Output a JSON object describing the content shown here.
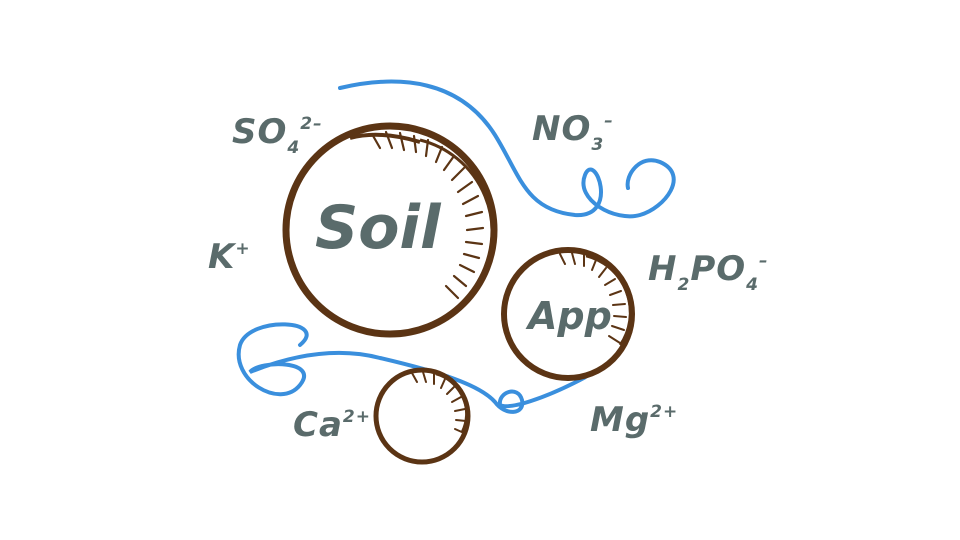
{
  "colors": {
    "ink": "#5a6b6b",
    "soil_brown": "#5b3414",
    "root_blue": "#3a8fdd",
    "background": "#ffffff"
  },
  "spheres": {
    "soil": {
      "label": "Soil"
    },
    "app": {
      "label": "App"
    },
    "small": {
      "label": ""
    }
  },
  "ions": {
    "sulfate": {
      "base": "SO",
      "sub": "4",
      "sup": "2–"
    },
    "nitrate": {
      "base": "NO",
      "sub": "3",
      "sup": "–"
    },
    "potassium": {
      "base": "K",
      "sup": "+"
    },
    "phosphate": {
      "base_h": "H",
      "sub_h": "2",
      "base": "PO",
      "sub": "4",
      "sup": "–"
    },
    "calcium": {
      "base": "Ca",
      "sup": "2+"
    },
    "magnesium": {
      "base": "Mg",
      "sup": "2+"
    }
  },
  "icons": [
    "root-line-icon",
    "soil-particle-icon"
  ]
}
